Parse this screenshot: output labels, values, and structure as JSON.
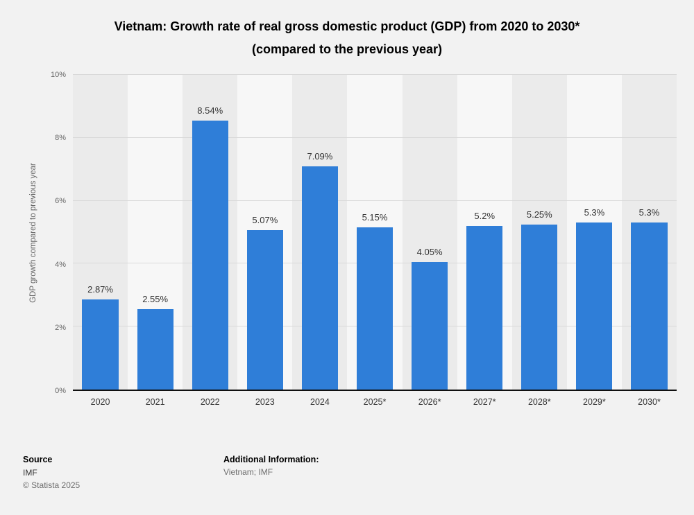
{
  "title": {
    "line1": "Vietnam: Growth rate of real gross domestic product (GDP) from 2020 to 2030*",
    "line2": "(compared to the previous year)"
  },
  "chart_data": {
    "type": "bar",
    "title": "Vietnam: Growth rate of real gross domestic product (GDP) from 2020 to 2030* (compared to the previous year)",
    "categories": [
      "2020",
      "2021",
      "2022",
      "2023",
      "2024",
      "2025*",
      "2026*",
      "2027*",
      "2028*",
      "2029*",
      "2030*"
    ],
    "values": [
      2.87,
      2.55,
      8.54,
      5.07,
      7.09,
      5.15,
      4.05,
      5.2,
      5.25,
      5.3,
      5.3
    ],
    "value_labels": [
      "2.87%",
      "2.55%",
      "8.54%",
      "5.07%",
      "7.09%",
      "5.15%",
      "4.05%",
      "5.2%",
      "5.25%",
      "5.3%",
      "5.3%"
    ],
    "xlabel": "",
    "ylabel": "GDP growth compared to previous year",
    "ylim": [
      0,
      10
    ],
    "yticks": [
      0,
      2,
      4,
      6,
      8,
      10
    ],
    "ytick_labels": [
      "0%",
      "2%",
      "4%",
      "6%",
      "8%",
      "10%"
    ],
    "bar_color": "#2f7ed8",
    "grid": true,
    "legend": false
  },
  "footer": {
    "source_label": "Source",
    "source_value": "IMF",
    "copyright": "© Statista 2025",
    "additional_label": "Additional Information:",
    "additional_value": "Vietnam; IMF"
  }
}
